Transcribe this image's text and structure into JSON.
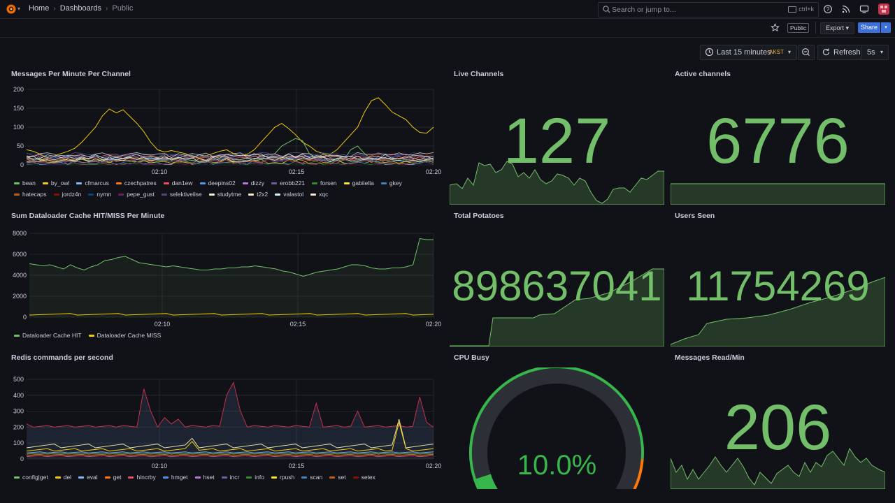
{
  "topbar": {
    "breadcrumbs": [
      "Home",
      "Dashboards",
      "Public"
    ],
    "search": {
      "placeholder": "Search or jump to...",
      "shortcut": "ctrl+k"
    }
  },
  "toolbar": {
    "public_badge": "Public",
    "export_label": "Export",
    "share_label": "Share"
  },
  "timepicker": {
    "range_label": "Last 15 minutes",
    "timezone": "AKST",
    "refresh_label": "Refresh",
    "interval": "5s"
  },
  "colors": {
    "accent": "#3d71d9",
    "stat_green": "#73bf69",
    "bg": "#111217"
  },
  "panels": {
    "messages_per_minute": {
      "title": "Messages Per Minute Per Channel",
      "y_ticks": [
        "200",
        "150",
        "100",
        "50",
        "0"
      ],
      "x_ticks": [
        "02:10",
        "02:15",
        "02:20"
      ],
      "legend": [
        {
          "name": "bean",
          "color": "#73bf69"
        },
        {
          "name": "by_owl",
          "color": "#f2cc0c"
        },
        {
          "name": "cfmarcus",
          "color": "#8ab8ff"
        },
        {
          "name": "czechpatres",
          "color": "#ff780a"
        },
        {
          "name": "dan1ew",
          "color": "#f2495c"
        },
        {
          "name": "deepins02",
          "color": "#5794f2"
        },
        {
          "name": "dizzy",
          "color": "#b877d9"
        },
        {
          "name": "erobb221",
          "color": "#705da0"
        },
        {
          "name": "forsen",
          "color": "#37872d"
        },
        {
          "name": "gabiiella",
          "color": "#fade2a"
        },
        {
          "name": "gkey",
          "color": "#447ebc"
        },
        {
          "name": "hatecaps",
          "color": "#c15c17"
        },
        {
          "name": "jordz4n",
          "color": "#890f02"
        },
        {
          "name": "nymn",
          "color": "#0a437c"
        },
        {
          "name": "pepe_gust",
          "color": "#6d1f62"
        },
        {
          "name": "selektivelise",
          "color": "#584477"
        },
        {
          "name": "studytme",
          "color": "#e0f9d7"
        },
        {
          "name": "t2x2",
          "color": "#fceaca"
        },
        {
          "name": "valastol",
          "color": "#cffaff"
        },
        {
          "name": "xqc",
          "color": "#f9e2d2"
        }
      ]
    },
    "live_channels": {
      "title": "Live Channels",
      "value": "127"
    },
    "active_channels": {
      "title": "Active channels",
      "value": "6776"
    },
    "dataloader": {
      "title": "Sum Dataloader Cache HIT/MISS Per Minute",
      "y_ticks": [
        "8000",
        "6000",
        "4000",
        "2000",
        "0"
      ],
      "x_ticks": [
        "02:10",
        "02:15",
        "02:20"
      ],
      "legend": [
        {
          "name": "Dataloader Cache HIT",
          "color": "#73bf69"
        },
        {
          "name": "Dataloader Cache MISS",
          "color": "#f2cc0c"
        }
      ]
    },
    "total_potatoes": {
      "title": "Total Potatoes",
      "value": "898637041"
    },
    "users_seen": {
      "title": "Users Seen",
      "value": "11754269"
    },
    "redis": {
      "title": "Redis commands per second",
      "y_ticks": [
        "500",
        "400",
        "300",
        "200",
        "100",
        "0"
      ],
      "x_ticks": [
        "02:10",
        "02:15",
        "02:20"
      ],
      "legend": [
        {
          "name": "config|get",
          "color": "#73bf69"
        },
        {
          "name": "del",
          "color": "#f2cc0c"
        },
        {
          "name": "eval",
          "color": "#8ab8ff"
        },
        {
          "name": "get",
          "color": "#ff780a"
        },
        {
          "name": "hincrby",
          "color": "#f2495c"
        },
        {
          "name": "hmget",
          "color": "#5794f2"
        },
        {
          "name": "hset",
          "color": "#b877d9"
        },
        {
          "name": "incr",
          "color": "#705da0"
        },
        {
          "name": "info",
          "color": "#37872d"
        },
        {
          "name": "rpush",
          "color": "#fade2a"
        },
        {
          "name": "scan",
          "color": "#447ebc"
        },
        {
          "name": "set",
          "color": "#c15c17"
        },
        {
          "name": "setex",
          "color": "#890f02"
        }
      ]
    },
    "cpu_busy": {
      "title": "CPU Busy",
      "value": "10.0%",
      "percent": 10
    },
    "messages_read": {
      "title": "Messages Read/Min",
      "value": "206"
    }
  }
}
